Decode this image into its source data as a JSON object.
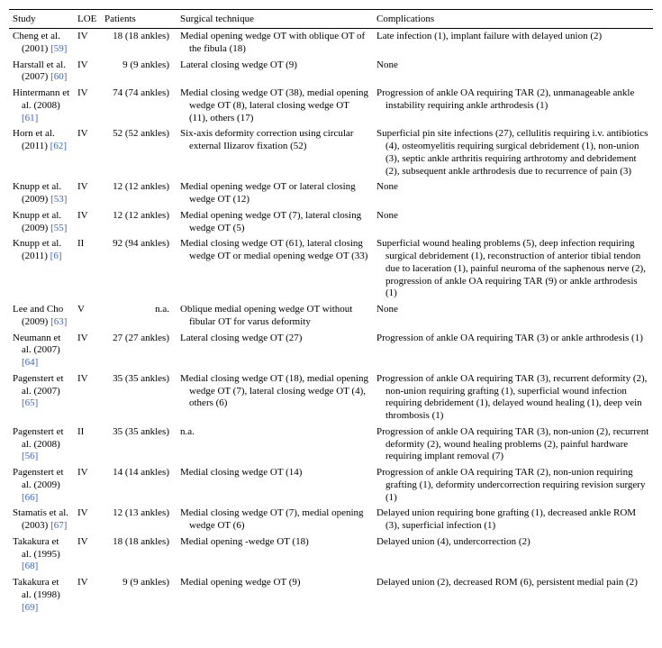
{
  "headers": {
    "study": "Study",
    "loe": "LOE",
    "patients": "Patients",
    "technique": "Surgical technique",
    "complications": "Complications"
  },
  "rows": [
    {
      "study": "Cheng et al. (2001) [59]",
      "loe": "IV",
      "patients": "18 (18 ankles)",
      "technique": "Medial opening wedge OT with oblique OT of the fibula (18)",
      "complications": "Late infection (1), implant failure with delayed union (2)"
    },
    {
      "study": "Harstall et al. (2007) [60]",
      "loe": "IV",
      "patients": "9 (9 ankles)",
      "technique": "Lateral closing wedge OT (9)",
      "complications": "None"
    },
    {
      "study": "Hintermann et al. (2008) [61]",
      "loe": "IV",
      "patients": "74 (74 ankles)",
      "technique": "Medial closing wedge OT (38), medial opening wedge OT (8), lateral closing wedge OT (11), others (17)",
      "complications": "Progression of ankle OA requiring TAR (2), unmanageable ankle instability requiring ankle arthrodesis (1)"
    },
    {
      "study": "Horn et al. (2011) [62]",
      "loe": "IV",
      "patients": "52 (52 ankles)",
      "technique": "Six-axis deformity correction using circular external Ilizarov fixation (52)",
      "complications": "Superficial pin site infections (27), cellulitis requiring i.v. antibiotics (4), osteomyelitis requiring surgical debridement (1), non-union (3), septic ankle arthritis requiring arthrotomy and debridement (2), subsequent ankle arthrodesis due to recurrence of pain (3)"
    },
    {
      "study": "Knupp et al. (2009) [53]",
      "loe": "IV",
      "patients": "12 (12 ankles)",
      "technique": "Medial opening wedge OT or lateral closing wedge OT (12)",
      "complications": "None"
    },
    {
      "study": "Knupp et al. (2009) [55]",
      "loe": "IV",
      "patients": "12 (12 ankles)",
      "technique": "Medial opening wedge OT (7), lateral closing wedge OT (5)",
      "complications": "None"
    },
    {
      "study": "Knupp et al. (2011) [6]",
      "loe": "II",
      "patients": "92 (94 ankles)",
      "technique": "Medial closing wedge OT (61), lateral closing wedge OT or medial opening wedge OT (33)",
      "complications": "Superficial wound healing problems (5), deep infection requiring surgical debridement (1), reconstruction of anterior tibial tendon due to laceration (1), painful neuroma of the saphenous nerve (2), progression of ankle OA requiring TAR (9) or ankle arthrodesis (1)"
    },
    {
      "study": "Lee and Cho (2009) [63]",
      "loe": "V",
      "patients": "n.a.",
      "technique": "Oblique medial opening wedge OT without fibular OT for varus deformity",
      "complications": "None"
    },
    {
      "study": "Neumann et al. (2007) [64]",
      "loe": "IV",
      "patients": "27 (27 ankles)",
      "technique": "Lateral closing wedge OT (27)",
      "complications": "Progression of ankle OA requiring TAR (3) or ankle arthrodesis (1)"
    },
    {
      "study": "Pagenstert et al. (2007) [65]",
      "loe": "IV",
      "patients": "35 (35 ankles)",
      "technique": "Medial closing wedge OT (18), medial opening wedge OT (7), lateral closing wedge OT (4), others (6)",
      "complications": "Progression of ankle OA requiring TAR (3), recurrent deformity (2), non-union requiring grafting (1), superficial wound infection requiring debridement (1), delayed wound healing (1), deep vein thrombosis (1)"
    },
    {
      "study": "Pagenstert et al. (2008) [56]",
      "loe": "II",
      "patients": "35 (35 ankles)",
      "technique": "n.a.",
      "complications": "Progression of ankle OA requiring TAR (3), non-union (2), recurrent deformity (2), wound healing problems (2), painful hardware requiring implant removal (7)"
    },
    {
      "study": "Pagenstert et al. (2009) [66]",
      "loe": "IV",
      "patients": "14 (14 ankles)",
      "technique": "Medial closing wedge OT (14)",
      "complications": "Progression of ankle OA requiring TAR (2), non-union requiring grafting (1), deformity undercorrection requiring revision surgery (1)"
    },
    {
      "study": "Stamatis et al. (2003) [67]",
      "loe": "IV",
      "patients": "12 (13 ankles)",
      "technique": "Medial closing wedge OT (7), medial opening wedge OT (6)",
      "complications": "Delayed union requiring bone grafting (1), decreased ankle ROM (3), superficial infection (1)"
    },
    {
      "study": "Takakura et al. (1995) [68]",
      "loe": "IV",
      "patients": "18 (18 ankles)",
      "technique": "Medial opening -wedge OT (18)",
      "complications": "Delayed union (4), undercorrection (2)"
    },
    {
      "study": "Takakura et al. (1998) [69]",
      "loe": "IV",
      "patients": "9 (9 ankles)",
      "technique": "Medial opening wedge OT (9)",
      "complications": "Delayed union (2), decreased ROM (6), persistent medial pain (2)"
    }
  ]
}
